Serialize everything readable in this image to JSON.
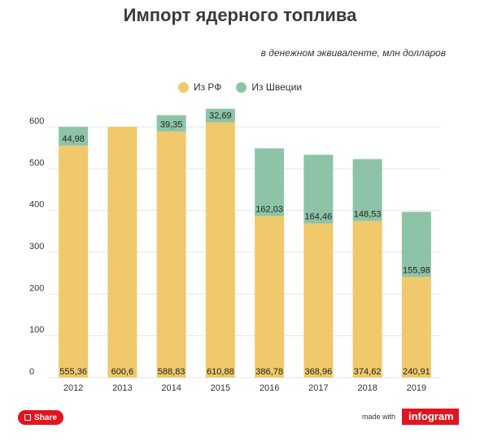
{
  "header": {
    "title": "Импорт ядерного топлива",
    "subtitle": "в денежном эквиваленте, млн долларов"
  },
  "colors": {
    "rf": "#efc96b",
    "sweden": "#8dc4a7",
    "grid": "#e6e6e6",
    "brand": "#e1141f"
  },
  "footer": {
    "share_label": "Share",
    "made_with": "made with",
    "brand": "infogram"
  },
  "chart_data": {
    "type": "bar",
    "stacked": true,
    "categories": [
      "2012",
      "2013",
      "2014",
      "2015",
      "2016",
      "2017",
      "2018",
      "2019"
    ],
    "series": [
      {
        "name": "Из РФ",
        "values": [
          555.36,
          600.6,
          588.83,
          610.88,
          386.78,
          368.96,
          374.62,
          240.91
        ],
        "labels": [
          "555,36",
          "600,6",
          "588,83",
          "610,88",
          "386,78",
          "368,96",
          "374,62",
          "240,91"
        ]
      },
      {
        "name": "Из Швеции",
        "values": [
          44.98,
          0,
          39.35,
          32.69,
          162.03,
          164.46,
          148.53,
          155.98
        ],
        "labels": [
          "44,98",
          "",
          "39,35",
          "32,69",
          "162,03",
          "164,46",
          "148,53",
          "155,98"
        ]
      }
    ],
    "yticks": [
      "0",
      "100",
      "200",
      "300",
      "400",
      "500",
      "600"
    ],
    "ylim": [
      0,
      600
    ],
    "grid": true,
    "legend": "top-center"
  }
}
